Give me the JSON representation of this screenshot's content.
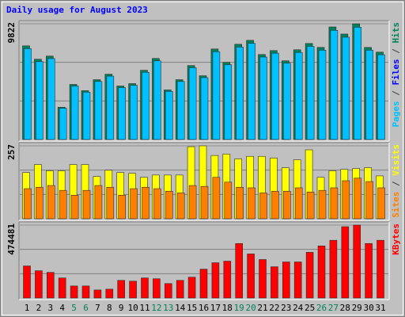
{
  "chart_data": {
    "type": "bar",
    "title": "Daily usage for August 2023",
    "categories": [
      "1",
      "2",
      "3",
      "4",
      "5",
      "6",
      "7",
      "8",
      "9",
      "10",
      "11",
      "12",
      "13",
      "14",
      "15",
      "16",
      "17",
      "18",
      "19",
      "20",
      "21",
      "22",
      "23",
      "24",
      "25",
      "26",
      "27",
      "28",
      "29",
      "30",
      "31"
    ],
    "category_colors": [
      "#000000",
      "#000000",
      "#000000",
      "#000000",
      "#00805C",
      "#00805C",
      "#000000",
      "#000000",
      "#000000",
      "#000000",
      "#000000",
      "#00805C",
      "#00805C",
      "#000000",
      "#000000",
      "#000000",
      "#000000",
      "#000000",
      "#00805C",
      "#00805C",
      "#000000",
      "#000000",
      "#000000",
      "#000000",
      "#000000",
      "#00805C",
      "#00805C",
      "#000000",
      "#000000",
      "#000000",
      "#000000"
    ],
    "panels": [
      {
        "ylim": [
          0,
          9822
        ],
        "yticks": [
          9822
        ],
        "legend": [
          {
            "text": "Pages",
            "color": "#00C0FF"
          },
          {
            "text": "/",
            "color": "#404040"
          },
          {
            "text": "Files",
            "color": "#0000FF"
          },
          {
            "text": "/",
            "color": "#404040"
          },
          {
            "text": "Hits",
            "color": "#00805C"
          }
        ],
        "series": [
          {
            "color": "#00805C",
            "values": [
              7950,
              6814,
              7081,
              2739,
              4676,
              4142,
              5077,
              5544,
              4542,
              4743,
              5878,
              6880,
              4208,
              5077,
              6279,
              5411,
              7682,
              6546,
              8083,
              8417,
              7214,
              7548,
              6680,
              7615,
              8150,
              7816,
              9552,
              8951,
              9822,
              7816,
              7415
            ]
          },
          {
            "color": "#00C0FF",
            "values": [
              7712,
              6610,
              6868,
              2657,
              4536,
              4018,
              4925,
              5378,
              4406,
              4601,
              5702,
              6674,
              4082,
              4925,
              6091,
              5249,
              7452,
              6350,
              7841,
              8164,
              6998,
              7322,
              6480,
              7387,
              7906,
              7582,
              9265,
              8682,
              9527,
              7582,
              7193
            ]
          }
        ]
      },
      {
        "ylim": [
          0,
          257
        ],
        "yticks": [
          257
        ],
        "legend": [
          {
            "text": "Sites",
            "color": "#FF8000"
          },
          {
            "text": "/",
            "color": "#404040"
          },
          {
            "text": "Visits",
            "color": "#FFFF00"
          }
        ],
        "series": [
          {
            "color": "#FFFF00",
            "values": [
              163,
              191,
              169,
              169,
              191,
              191,
              149,
              171,
              163,
              160,
              146,
              154,
              154,
              154,
              254,
              257,
              223,
              228,
              211,
              220,
              220,
              214,
              180,
              208,
              243,
              146,
              169,
              174,
              177,
              180,
              151
            ]
          },
          {
            "color": "#FF8000",
            "values": [
              106,
              111,
              117,
              100,
              83,
              100,
              117,
              111,
              83,
              106,
              111,
              106,
              97,
              91,
              117,
              114,
              146,
              129,
              111,
              109,
              91,
              97,
              97,
              109,
              94,
              100,
              109,
              134,
              143,
              131,
              109
            ]
          }
        ]
      },
      {
        "ylim": [
          0,
          474481
        ],
        "yticks": [
          474481
        ],
        "legend": [
          {
            "text": "KBytes",
            "color": "#FF0000"
          }
        ],
        "series": [
          {
            "color": "#FF0000",
            "values": [
              208560,
              177280,
              166850,
              130350,
              78210,
              78210,
              52140,
              57350,
              114710,
              109490,
              130350,
              125140,
              93850,
              114710,
              135560,
              187700,
              229420,
              239840,
              354550,
              286770,
              250270,
              203350,
              234630,
              234630,
              297200,
              338910,
              375410,
              464050,
              474481,
              354550,
              375410
            ]
          }
        ]
      }
    ]
  }
}
